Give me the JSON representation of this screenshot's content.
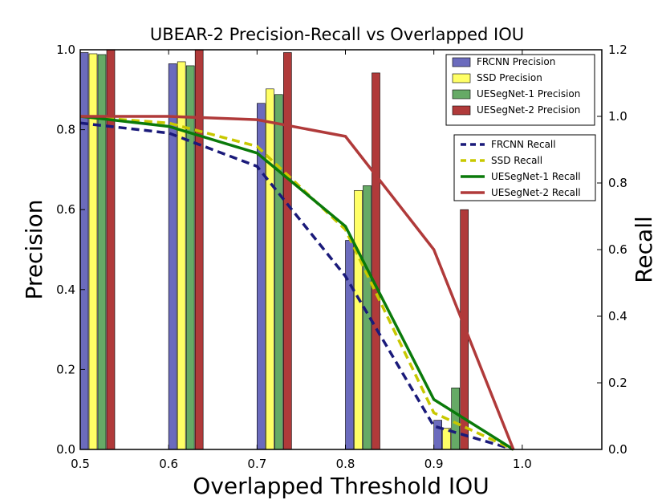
{
  "chart_data": {
    "type": "bar",
    "title": "UBEAR-2 Precision-Recall vs Overlapped IOU",
    "xlabel": "Overlapped Threshold IOU",
    "ylabel": "Precision",
    "y2label": "Recall",
    "xlim": [
      0.5,
      1.09
    ],
    "ylim": [
      0,
      1.0
    ],
    "y2lim": [
      0,
      1.2
    ],
    "x_ticks": [
      "0.5",
      "0.6",
      "0.7",
      "0.8",
      "0.9",
      "1.0"
    ],
    "y_ticks": [
      "0.0",
      "0.2",
      "0.4",
      "0.6",
      "0.8",
      "1.0"
    ],
    "y2_ticks": [
      "0.0",
      "0.2",
      "0.4",
      "0.6",
      "0.8",
      "1.0",
      "1.2"
    ],
    "grid": false,
    "x": [
      0.5,
      0.6,
      0.7,
      0.8,
      0.9,
      1.0
    ],
    "bar_series": [
      {
        "name": "FRCNN Precision",
        "color": "#6b6bbd",
        "values": [
          0.993,
          0.965,
          0.866,
          0.523,
          0.073,
          0
        ]
      },
      {
        "name": "SSD Precision",
        "color": "#ffff66",
        "values": [
          0.99,
          0.97,
          0.902,
          0.648,
          0.053,
          0
        ]
      },
      {
        "name": "UESegNet-1 Precision",
        "color": "#66aa66",
        "values": [
          0.988,
          0.96,
          0.888,
          0.66,
          0.154,
          0
        ]
      },
      {
        "name": "UESegNet-2 Precision",
        "color": "#b03a3a",
        "values": [
          1.0,
          1.0,
          0.993,
          0.942,
          0.6,
          0
        ]
      }
    ],
    "line_series": [
      {
        "name": "FRCNN Recall",
        "color": "#1a1a7a",
        "dash": "dashed",
        "x": [
          0.5,
          0.6,
          0.7,
          0.8,
          0.9,
          0.99
        ],
        "values": [
          0.98,
          0.95,
          0.85,
          0.52,
          0.07,
          0
        ]
      },
      {
        "name": "SSD Recall",
        "color": "#c8c800",
        "dash": "dashed",
        "x": [
          0.5,
          0.6,
          0.7,
          0.8,
          0.9,
          0.99
        ],
        "values": [
          1.0,
          0.98,
          0.91,
          0.66,
          0.11,
          0
        ]
      },
      {
        "name": "UESegNet-1 Recall",
        "color": "#0a7a0a",
        "dash": "solid",
        "x": [
          0.5,
          0.6,
          0.7,
          0.8,
          0.9,
          0.99
        ],
        "values": [
          1.0,
          0.97,
          0.89,
          0.67,
          0.15,
          0
        ]
      },
      {
        "name": "UESegNet-2 Recall",
        "color": "#b03a3a",
        "dash": "solid",
        "x": [
          0.5,
          0.6,
          0.7,
          0.8,
          0.9,
          0.99
        ],
        "values": [
          1.0,
          1.0,
          0.99,
          0.94,
          0.6,
          0
        ]
      }
    ]
  }
}
